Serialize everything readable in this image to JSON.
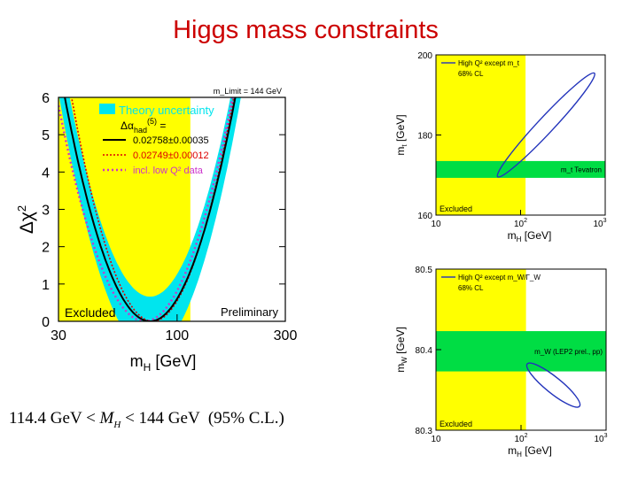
{
  "slide_title": "Higgs mass constraints",
  "colors": {
    "title": "#cc0000",
    "excluded_band": "#ffff00",
    "theory_band": "#00e5ee",
    "black_curve": "#000000",
    "red_curve": "#dd0000",
    "magenta_curve": "#cc33cc",
    "green_band": "#00dd44",
    "ellipse": "#2233bb"
  },
  "formula": {
    "lower": "114.4 GeV",
    "lt1": "<",
    "var": "M",
    "sub": "H",
    "lt2": "<",
    "upper": "144 GeV",
    "cl": "(95% C.L.)"
  },
  "chart_data": [
    {
      "type": "line",
      "title": "",
      "xlabel": "m",
      "xlabel_sub": "H",
      "xlabel_unit": "[GeV]",
      "ylabel": "Δχ",
      "ylabel_sup": "2",
      "xscale": "log",
      "xlim": [
        30,
        300
      ],
      "ylim": [
        0,
        6
      ],
      "x_ticks": [
        30,
        100,
        300
      ],
      "y_ticks": [
        0,
        1,
        2,
        3,
        4,
        5,
        6
      ],
      "excluded_region": {
        "x_to": 114.4,
        "label": "Excluded"
      },
      "preliminary_label": "Preliminary",
      "limit_label": "m_Limit = 144 GeV",
      "legend": {
        "placement": "top-left",
        "theory": "Theory uncertainty",
        "alpha_label": "Δα",
        "alpha_sup": "(5)",
        "alpha_sub": "had",
        "alpha_eq": "=",
        "entries": [
          "0.02758±0.00035",
          "0.02749±0.00012",
          "incl. low Q² data"
        ]
      },
      "series": [
        {
          "name": "0.02758±0.00035",
          "style": "solid",
          "min_x": 76,
          "curvature": 4.25,
          "band_width": 0.3
        },
        {
          "name": "0.02749±0.00012",
          "style": "dotted",
          "min_x": 78,
          "curvature": 4.7
        },
        {
          "name": "incl. low Q² data",
          "style": "dotted",
          "min_x": 72,
          "curvature": 4.0
        }
      ]
    },
    {
      "type": "scatter",
      "title": "",
      "xlabel": "m",
      "xlabel_sub": "H",
      "xlabel_unit": "[GeV]",
      "ylabel": "m",
      "ylabel_sub": "t",
      "ylabel_unit": "[GeV]",
      "xscale": "log",
      "xlim": [
        10,
        1000
      ],
      "ylim": [
        160,
        200
      ],
      "x_ticks": [
        "10",
        "10²",
        "10³"
      ],
      "y_ticks": [
        160,
        180,
        200
      ],
      "excluded_region": {
        "x_to": 114.4,
        "label": "Excluded"
      },
      "measurement_band": {
        "center": 171.4,
        "half_width": 2.1,
        "label": "m_t Tevatron"
      },
      "legend": {
        "placement": "top-left",
        "line1": "High Q² except m_t",
        "line2": "68% CL"
      },
      "ellipse": {
        "label": "68% CL contour"
      }
    },
    {
      "type": "scatter",
      "title": "",
      "xlabel": "m",
      "xlabel_sub": "H",
      "xlabel_unit": "[GeV]",
      "ylabel": "m",
      "ylabel_sub": "W",
      "ylabel_unit": "[GeV]",
      "xscale": "log",
      "xlim": [
        10,
        1000
      ],
      "ylim": [
        80.3,
        80.5
      ],
      "x_ticks": [
        "10",
        "10²",
        "10³"
      ],
      "y_ticks": [
        80.3,
        80.4,
        80.5
      ],
      "excluded_region": {
        "x_to": 114.4,
        "label": "Excluded"
      },
      "measurement_band": {
        "center": 80.398,
        "half_width": 0.025,
        "label": "m_W (LEP2 prel., pp)"
      },
      "legend": {
        "placement": "top-left",
        "line1": "High Q² except m_W/Γ_W",
        "line2": "68% CL"
      },
      "ellipse": {
        "label": "68% CL contour"
      }
    }
  ]
}
